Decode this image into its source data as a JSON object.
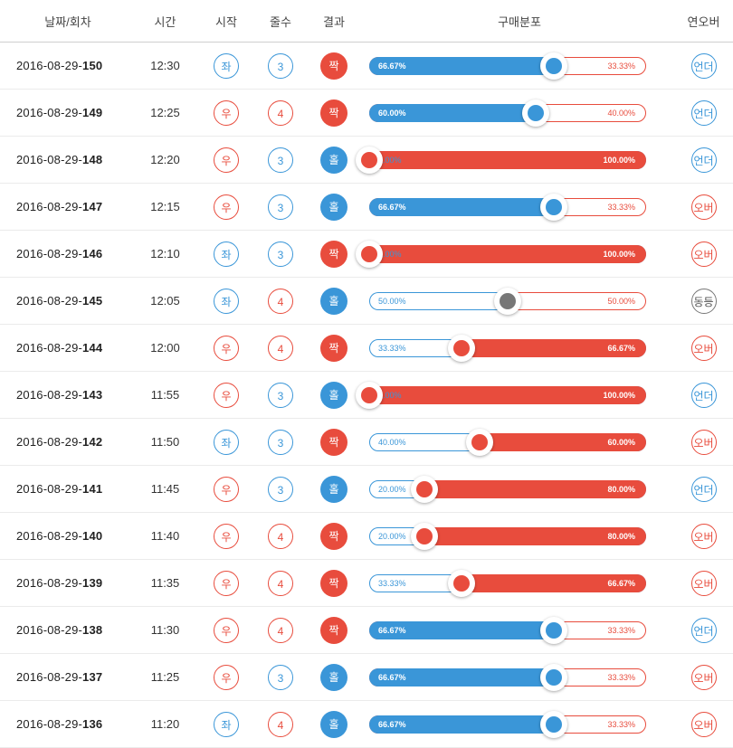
{
  "header": {
    "date_round": "날짜/회차",
    "time": "시간",
    "start": "시작",
    "lines": "줄수",
    "result": "결과",
    "distribution": "구매분포",
    "streak": "연오버"
  },
  "colors": {
    "blue": "#3a96d8",
    "red": "#e84c3d",
    "gray": "#777777"
  },
  "rows": [
    {
      "date": "2016-08-29-",
      "round": "150",
      "time": "12:30",
      "start": "좌",
      "start_color": "blue",
      "lines": "3",
      "lines_color": "blue",
      "result": "짝",
      "result_color": "red",
      "left_pct": 66.67,
      "left_label": "66.67%",
      "right_label": "33.33%",
      "dominant": "left",
      "knob_color": "blue",
      "streak": "언더",
      "streak_color": "blue"
    },
    {
      "date": "2016-08-29-",
      "round": "149",
      "time": "12:25",
      "start": "우",
      "start_color": "red",
      "lines": "4",
      "lines_color": "red",
      "result": "짝",
      "result_color": "red",
      "left_pct": 60.0,
      "left_label": "60.00%",
      "right_label": "40.00%",
      "dominant": "left",
      "knob_color": "blue",
      "streak": "언더",
      "streak_color": "blue"
    },
    {
      "date": "2016-08-29-",
      "round": "148",
      "time": "12:20",
      "start": "우",
      "start_color": "red",
      "lines": "3",
      "lines_color": "blue",
      "result": "홀",
      "result_color": "blue",
      "left_pct": 0,
      "left_label": "0.00%",
      "right_label": "100.00%",
      "dominant": "right",
      "knob_color": "red",
      "streak": "언더",
      "streak_color": "blue"
    },
    {
      "date": "2016-08-29-",
      "round": "147",
      "time": "12:15",
      "start": "우",
      "start_color": "red",
      "lines": "3",
      "lines_color": "blue",
      "result": "홀",
      "result_color": "blue",
      "left_pct": 66.67,
      "left_label": "66.67%",
      "right_label": "33.33%",
      "dominant": "left",
      "knob_color": "blue",
      "streak": "오버",
      "streak_color": "red"
    },
    {
      "date": "2016-08-29-",
      "round": "146",
      "time": "12:10",
      "start": "좌",
      "start_color": "blue",
      "lines": "3",
      "lines_color": "blue",
      "result": "짝",
      "result_color": "red",
      "left_pct": 0,
      "left_label": "0.00%",
      "right_label": "100.00%",
      "dominant": "right",
      "knob_color": "red",
      "streak": "오버",
      "streak_color": "red"
    },
    {
      "date": "2016-08-29-",
      "round": "145",
      "time": "12:05",
      "start": "좌",
      "start_color": "blue",
      "lines": "4",
      "lines_color": "red",
      "result": "홀",
      "result_color": "blue",
      "left_pct": 50.0,
      "left_label": "50.00%",
      "right_label": "50.00%",
      "dominant": "tie",
      "knob_color": "gray",
      "streak": "동등",
      "streak_color": "gray"
    },
    {
      "date": "2016-08-29-",
      "round": "144",
      "time": "12:00",
      "start": "우",
      "start_color": "red",
      "lines": "4",
      "lines_color": "red",
      "result": "짝",
      "result_color": "red",
      "left_pct": 33.33,
      "left_label": "33.33%",
      "right_label": "66.67%",
      "dominant": "right",
      "knob_color": "red",
      "streak": "오버",
      "streak_color": "red"
    },
    {
      "date": "2016-08-29-",
      "round": "143",
      "time": "11:55",
      "start": "우",
      "start_color": "red",
      "lines": "3",
      "lines_color": "blue",
      "result": "홀",
      "result_color": "blue",
      "left_pct": 0,
      "left_label": "0.00%",
      "right_label": "100.00%",
      "dominant": "right",
      "knob_color": "red",
      "streak": "언더",
      "streak_color": "blue"
    },
    {
      "date": "2016-08-29-",
      "round": "142",
      "time": "11:50",
      "start": "좌",
      "start_color": "blue",
      "lines": "3",
      "lines_color": "blue",
      "result": "짝",
      "result_color": "red",
      "left_pct": 40.0,
      "left_label": "40.00%",
      "right_label": "60.00%",
      "dominant": "right",
      "knob_color": "red",
      "streak": "오버",
      "streak_color": "red"
    },
    {
      "date": "2016-08-29-",
      "round": "141",
      "time": "11:45",
      "start": "우",
      "start_color": "red",
      "lines": "3",
      "lines_color": "blue",
      "result": "홀",
      "result_color": "blue",
      "left_pct": 20.0,
      "left_label": "20.00%",
      "right_label": "80.00%",
      "dominant": "right",
      "knob_color": "red",
      "streak": "언더",
      "streak_color": "blue"
    },
    {
      "date": "2016-08-29-",
      "round": "140",
      "time": "11:40",
      "start": "우",
      "start_color": "red",
      "lines": "4",
      "lines_color": "red",
      "result": "짝",
      "result_color": "red",
      "left_pct": 20.0,
      "left_label": "20.00%",
      "right_label": "80.00%",
      "dominant": "right",
      "knob_color": "red",
      "streak": "오버",
      "streak_color": "red"
    },
    {
      "date": "2016-08-29-",
      "round": "139",
      "time": "11:35",
      "start": "우",
      "start_color": "red",
      "lines": "4",
      "lines_color": "red",
      "result": "짝",
      "result_color": "red",
      "left_pct": 33.33,
      "left_label": "33.33%",
      "right_label": "66.67%",
      "dominant": "right",
      "knob_color": "red",
      "streak": "오버",
      "streak_color": "red"
    },
    {
      "date": "2016-08-29-",
      "round": "138",
      "time": "11:30",
      "start": "우",
      "start_color": "red",
      "lines": "4",
      "lines_color": "red",
      "result": "짝",
      "result_color": "red",
      "left_pct": 66.67,
      "left_label": "66.67%",
      "right_label": "33.33%",
      "dominant": "left",
      "knob_color": "blue",
      "streak": "언더",
      "streak_color": "blue"
    },
    {
      "date": "2016-08-29-",
      "round": "137",
      "time": "11:25",
      "start": "우",
      "start_color": "red",
      "lines": "3",
      "lines_color": "blue",
      "result": "홀",
      "result_color": "blue",
      "left_pct": 66.67,
      "left_label": "66.67%",
      "right_label": "33.33%",
      "dominant": "left",
      "knob_color": "blue",
      "streak": "오버",
      "streak_color": "red"
    },
    {
      "date": "2016-08-29-",
      "round": "136",
      "time": "11:20",
      "start": "좌",
      "start_color": "blue",
      "lines": "4",
      "lines_color": "red",
      "result": "홀",
      "result_color": "blue",
      "left_pct": 66.67,
      "left_label": "66.67%",
      "right_label": "33.33%",
      "dominant": "left",
      "knob_color": "blue",
      "streak": "오버",
      "streak_color": "red"
    }
  ]
}
